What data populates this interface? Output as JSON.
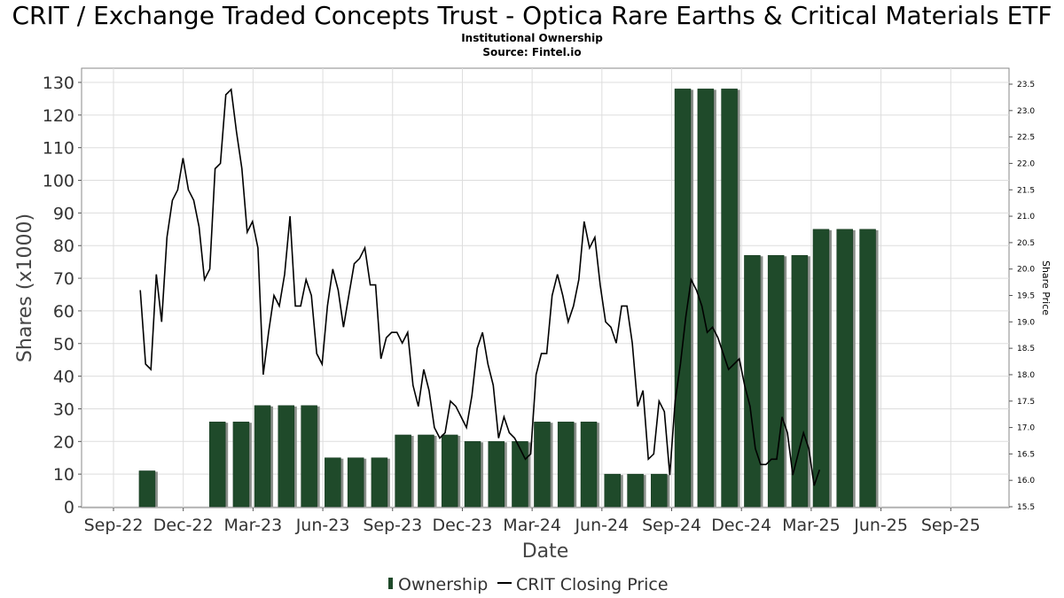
{
  "header": {
    "title": "CRIT / Exchange Traded Concepts Trust - Optica Rare Earths & Critical Materials ETF",
    "subtitle": "Institutional Ownership",
    "source": "Source: Fintel.io"
  },
  "colors": {
    "bar_fill": "#1f4a2a",
    "bar_shadow": "#8a8f8a",
    "line": "#000000",
    "grid": "#dddddd"
  },
  "chart_data": {
    "type": "bar",
    "xlabel": "Date",
    "ylabel": "Shares (x1000)",
    "y2label": "Share Price",
    "grid": true,
    "legend_position": "bottom",
    "x_ticks": [
      "Sep-22",
      "Dec-22",
      "Mar-23",
      "Jun-23",
      "Sep-23",
      "Dec-23",
      "Mar-24",
      "Jun-24",
      "Sep-24",
      "Dec-24",
      "Mar-25",
      "Jun-25",
      "Sep-25"
    ],
    "ylim": [
      0,
      130
    ],
    "y_ticks": [
      "0",
      "10",
      "20",
      "30",
      "40",
      "50",
      "60",
      "70",
      "80",
      "90",
      "100",
      "110",
      "120",
      "130"
    ],
    "y2lim": [
      15.5,
      23.5
    ],
    "y2_ticks": [
      "15.5",
      "16.0",
      "16.5",
      "17.0",
      "17.5",
      "18.0",
      "18.5",
      "19.0",
      "19.5",
      "20.0",
      "20.5",
      "21.0",
      "21.5",
      "22.0",
      "22.5",
      "23.0",
      "23.5"
    ],
    "series": [
      {
        "name": "Ownership",
        "kind": "bar",
        "axis": "left",
        "points": [
          {
            "x": "2022-10-15",
            "y": 11
          },
          {
            "x": "2023-01-15",
            "y": 26
          },
          {
            "x": "2023-02-15",
            "y": 26
          },
          {
            "x": "2023-03-15",
            "y": 31
          },
          {
            "x": "2023-04-15",
            "y": 31
          },
          {
            "x": "2023-05-15",
            "y": 31
          },
          {
            "x": "2023-06-15",
            "y": 15
          },
          {
            "x": "2023-07-15",
            "y": 15
          },
          {
            "x": "2023-08-15",
            "y": 15
          },
          {
            "x": "2023-09-15",
            "y": 22
          },
          {
            "x": "2023-10-15",
            "y": 22
          },
          {
            "x": "2023-11-15",
            "y": 22
          },
          {
            "x": "2023-12-15",
            "y": 20
          },
          {
            "x": "2024-01-15",
            "y": 20
          },
          {
            "x": "2024-02-15",
            "y": 20
          },
          {
            "x": "2024-03-15",
            "y": 26
          },
          {
            "x": "2024-04-15",
            "y": 26
          },
          {
            "x": "2024-05-15",
            "y": 26
          },
          {
            "x": "2024-06-15",
            "y": 10
          },
          {
            "x": "2024-07-15",
            "y": 10
          },
          {
            "x": "2024-08-15",
            "y": 10
          },
          {
            "x": "2024-09-15",
            "y": 128
          },
          {
            "x": "2024-10-15",
            "y": 128
          },
          {
            "x": "2024-11-15",
            "y": 128
          },
          {
            "x": "2024-12-15",
            "y": 77
          },
          {
            "x": "2025-01-15",
            "y": 77
          },
          {
            "x": "2025-02-15",
            "y": 77
          },
          {
            "x": "2025-03-15",
            "y": 85
          },
          {
            "x": "2025-04-15",
            "y": 85
          },
          {
            "x": "2025-05-15",
            "y": 85
          }
        ]
      },
      {
        "name": "CRIT Closing Price",
        "kind": "line",
        "axis": "right",
        "points": [
          {
            "x": "2022-10-06",
            "y": 19.6
          },
          {
            "x": "2022-10-13",
            "y": 18.2
          },
          {
            "x": "2022-10-20",
            "y": 18.1
          },
          {
            "x": "2022-10-27",
            "y": 19.9
          },
          {
            "x": "2022-11-03",
            "y": 19.0
          },
          {
            "x": "2022-11-10",
            "y": 20.6
          },
          {
            "x": "2022-11-17",
            "y": 21.3
          },
          {
            "x": "2022-11-24",
            "y": 21.5
          },
          {
            "x": "2022-12-01",
            "y": 22.1
          },
          {
            "x": "2022-12-08",
            "y": 21.5
          },
          {
            "x": "2022-12-15",
            "y": 21.3
          },
          {
            "x": "2022-12-22",
            "y": 20.8
          },
          {
            "x": "2022-12-29",
            "y": 19.8
          },
          {
            "x": "2023-01-05",
            "y": 20.0
          },
          {
            "x": "2023-01-12",
            "y": 21.9
          },
          {
            "x": "2023-01-19",
            "y": 22.0
          },
          {
            "x": "2023-01-26",
            "y": 23.3
          },
          {
            "x": "2023-02-02",
            "y": 23.4
          },
          {
            "x": "2023-02-09",
            "y": 22.6
          },
          {
            "x": "2023-02-16",
            "y": 21.9
          },
          {
            "x": "2023-02-23",
            "y": 20.7
          },
          {
            "x": "2023-03-02",
            "y": 20.9
          },
          {
            "x": "2023-03-09",
            "y": 20.4
          },
          {
            "x": "2023-03-16",
            "y": 18.0
          },
          {
            "x": "2023-03-23",
            "y": 18.8
          },
          {
            "x": "2023-03-30",
            "y": 19.5
          },
          {
            "x": "2023-04-06",
            "y": 19.3
          },
          {
            "x": "2023-04-13",
            "y": 19.9
          },
          {
            "x": "2023-04-20",
            "y": 21.0
          },
          {
            "x": "2023-04-27",
            "y": 19.3
          },
          {
            "x": "2023-05-04",
            "y": 19.3
          },
          {
            "x": "2023-05-11",
            "y": 19.8
          },
          {
            "x": "2023-05-18",
            "y": 19.5
          },
          {
            "x": "2023-05-25",
            "y": 18.4
          },
          {
            "x": "2023-06-01",
            "y": 18.2
          },
          {
            "x": "2023-06-08",
            "y": 19.3
          },
          {
            "x": "2023-06-15",
            "y": 20.0
          },
          {
            "x": "2023-06-22",
            "y": 19.6
          },
          {
            "x": "2023-06-29",
            "y": 18.9
          },
          {
            "x": "2023-07-06",
            "y": 19.5
          },
          {
            "x": "2023-07-13",
            "y": 20.1
          },
          {
            "x": "2023-07-20",
            "y": 20.2
          },
          {
            "x": "2023-07-27",
            "y": 20.4
          },
          {
            "x": "2023-08-03",
            "y": 19.7
          },
          {
            "x": "2023-08-10",
            "y": 19.7
          },
          {
            "x": "2023-08-17",
            "y": 18.3
          },
          {
            "x": "2023-08-24",
            "y": 18.7
          },
          {
            "x": "2023-08-31",
            "y": 18.8
          },
          {
            "x": "2023-09-07",
            "y": 18.8
          },
          {
            "x": "2023-09-14",
            "y": 18.6
          },
          {
            "x": "2023-09-21",
            "y": 18.8
          },
          {
            "x": "2023-09-28",
            "y": 17.8
          },
          {
            "x": "2023-10-05",
            "y": 17.4
          },
          {
            "x": "2023-10-12",
            "y": 18.1
          },
          {
            "x": "2023-10-19",
            "y": 17.7
          },
          {
            "x": "2023-10-26",
            "y": 17.0
          },
          {
            "x": "2023-11-02",
            "y": 16.8
          },
          {
            "x": "2023-11-09",
            "y": 16.9
          },
          {
            "x": "2023-11-16",
            "y": 17.5
          },
          {
            "x": "2023-11-23",
            "y": 17.4
          },
          {
            "x": "2023-11-30",
            "y": 17.2
          },
          {
            "x": "2023-12-07",
            "y": 17.0
          },
          {
            "x": "2023-12-14",
            "y": 17.6
          },
          {
            "x": "2023-12-21",
            "y": 18.5
          },
          {
            "x": "2023-12-28",
            "y": 18.8
          },
          {
            "x": "2024-01-04",
            "y": 18.2
          },
          {
            "x": "2024-01-11",
            "y": 17.8
          },
          {
            "x": "2024-01-18",
            "y": 16.8
          },
          {
            "x": "2024-01-25",
            "y": 17.2
          },
          {
            "x": "2024-02-01",
            "y": 16.9
          },
          {
            "x": "2024-02-08",
            "y": 16.8
          },
          {
            "x": "2024-02-15",
            "y": 16.6
          },
          {
            "x": "2024-02-22",
            "y": 16.4
          },
          {
            "x": "2024-02-29",
            "y": 16.5
          },
          {
            "x": "2024-03-07",
            "y": 18.0
          },
          {
            "x": "2024-03-14",
            "y": 18.4
          },
          {
            "x": "2024-03-21",
            "y": 18.4
          },
          {
            "x": "2024-03-28",
            "y": 19.5
          },
          {
            "x": "2024-04-04",
            "y": 19.9
          },
          {
            "x": "2024-04-11",
            "y": 19.5
          },
          {
            "x": "2024-04-18",
            "y": 19.0
          },
          {
            "x": "2024-04-25",
            "y": 19.3
          },
          {
            "x": "2024-05-02",
            "y": 19.8
          },
          {
            "x": "2024-05-09",
            "y": 20.9
          },
          {
            "x": "2024-05-16",
            "y": 20.4
          },
          {
            "x": "2024-05-23",
            "y": 20.6
          },
          {
            "x": "2024-05-30",
            "y": 19.7
          },
          {
            "x": "2024-06-06",
            "y": 19.0
          },
          {
            "x": "2024-06-13",
            "y": 18.9
          },
          {
            "x": "2024-06-20",
            "y": 18.6
          },
          {
            "x": "2024-06-27",
            "y": 19.3
          },
          {
            "x": "2024-07-04",
            "y": 19.3
          },
          {
            "x": "2024-07-11",
            "y": 18.6
          },
          {
            "x": "2024-07-18",
            "y": 17.4
          },
          {
            "x": "2024-07-25",
            "y": 17.7
          },
          {
            "x": "2024-08-01",
            "y": 16.4
          },
          {
            "x": "2024-08-08",
            "y": 16.5
          },
          {
            "x": "2024-08-15",
            "y": 17.5
          },
          {
            "x": "2024-08-22",
            "y": 17.3
          },
          {
            "x": "2024-08-29",
            "y": 16.1
          },
          {
            "x": "2024-09-05",
            "y": 17.5
          },
          {
            "x": "2024-09-12",
            "y": 18.2
          },
          {
            "x": "2024-09-19",
            "y": 19.1
          },
          {
            "x": "2024-09-26",
            "y": 19.8
          },
          {
            "x": "2024-10-03",
            "y": 19.6
          },
          {
            "x": "2024-10-10",
            "y": 19.3
          },
          {
            "x": "2024-10-17",
            "y": 18.8
          },
          {
            "x": "2024-10-24",
            "y": 18.9
          },
          {
            "x": "2024-10-31",
            "y": 18.7
          },
          {
            "x": "2024-11-07",
            "y": 18.4
          },
          {
            "x": "2024-11-14",
            "y": 18.1
          },
          {
            "x": "2024-11-21",
            "y": 18.2
          },
          {
            "x": "2024-11-28",
            "y": 18.3
          },
          {
            "x": "2024-12-05",
            "y": 17.8
          },
          {
            "x": "2024-12-12",
            "y": 17.4
          },
          {
            "x": "2024-12-19",
            "y": 16.6
          },
          {
            "x": "2024-12-26",
            "y": 16.3
          },
          {
            "x": "2025-01-02",
            "y": 16.3
          },
          {
            "x": "2025-01-09",
            "y": 16.4
          },
          {
            "x": "2025-01-16",
            "y": 16.4
          },
          {
            "x": "2025-01-23",
            "y": 17.2
          },
          {
            "x": "2025-01-30",
            "y": 16.9
          },
          {
            "x": "2025-02-06",
            "y": 16.1
          },
          {
            "x": "2025-02-13",
            "y": 16.5
          },
          {
            "x": "2025-02-20",
            "y": 16.9
          },
          {
            "x": "2025-02-27",
            "y": 16.6
          },
          {
            "x": "2025-03-06",
            "y": 15.9
          },
          {
            "x": "2025-03-13",
            "y": 16.2
          }
        ]
      }
    ]
  }
}
